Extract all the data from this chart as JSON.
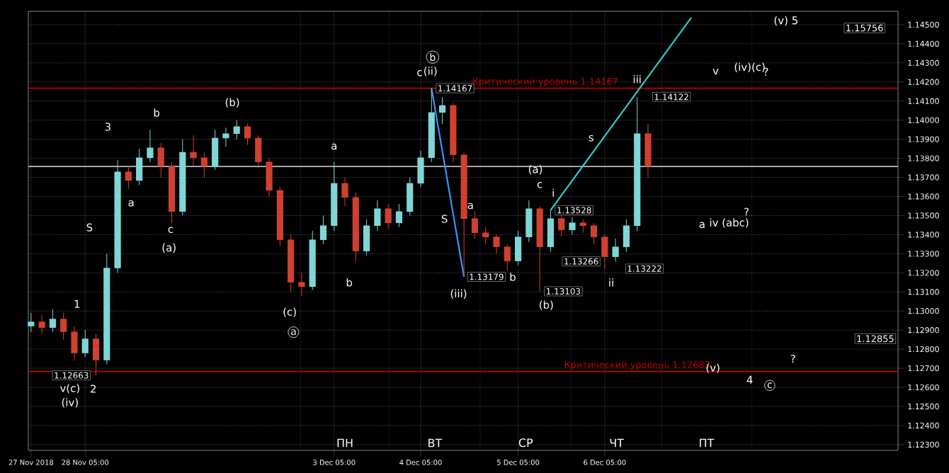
{
  "chart_data": {
    "type": "candlestick",
    "categories": [
      "27 Nov 2018",
      null,
      null,
      null,
      null,
      "28 Nov 05:00",
      null,
      null,
      null,
      null,
      null,
      null,
      null,
      null,
      null,
      null,
      null,
      null,
      null,
      null,
      null,
      null,
      null,
      null,
      null,
      null,
      null,
      null,
      "3 Dec 05:00",
      null,
      null,
      null,
      null,
      null,
      null,
      null,
      "4 Dec 05:00",
      null,
      null,
      null,
      null,
      null,
      null,
      null,
      null,
      "5 Dec 05:00",
      null,
      null,
      null,
      null,
      null,
      null,
      null,
      "6 Dec 05:00",
      null,
      null,
      null,
      null,
      null,
      null,
      null,
      null,
      null,
      null,
      null,
      null,
      null,
      null,
      null,
      null,
      null,
      null,
      null,
      null,
      null,
      null,
      null,
      null,
      null,
      null,
      null
    ],
    "ohlc": [
      [
        1.1292,
        1.1299,
        1.1289,
        1.12942
      ],
      [
        1.12942,
        1.1298,
        1.1288,
        1.12912
      ],
      [
        1.12912,
        1.1301,
        1.1289,
        1.12957
      ],
      [
        1.12957,
        1.1299,
        1.1285,
        1.1289
      ],
      [
        1.1289,
        1.1292,
        1.1274,
        1.12779
      ],
      [
        1.12779,
        1.129,
        1.1276,
        1.12853
      ],
      [
        1.12853,
        1.1288,
        1.12663,
        1.12742
      ],
      [
        1.12742,
        1.133,
        1.1272,
        1.13224
      ],
      [
        1.13224,
        1.1379,
        1.132,
        1.13728
      ],
      [
        1.13728,
        1.1376,
        1.1364,
        1.13683
      ],
      [
        1.13683,
        1.1385,
        1.1366,
        1.13802
      ],
      [
        1.13802,
        1.1395,
        1.1378,
        1.13854
      ],
      [
        1.13854,
        1.1388,
        1.137,
        1.13757
      ],
      [
        1.13757,
        1.1378,
        1.1346,
        1.1352
      ],
      [
        1.1352,
        1.139,
        1.135,
        1.13831
      ],
      [
        1.13831,
        1.1392,
        1.1376,
        1.13802
      ],
      [
        1.13802,
        1.1383,
        1.137,
        1.13757
      ],
      [
        1.13757,
        1.1395,
        1.1374,
        1.13905
      ],
      [
        1.13905,
        1.1396,
        1.1386,
        1.13928
      ],
      [
        1.13928,
        1.14,
        1.139,
        1.13965
      ],
      [
        1.13965,
        1.1398,
        1.1387,
        1.13905
      ],
      [
        1.13905,
        1.1392,
        1.1375,
        1.1378
      ],
      [
        1.1378,
        1.138,
        1.136,
        1.13631
      ],
      [
        1.13631,
        1.1365,
        1.1334,
        1.13372
      ],
      [
        1.13372,
        1.134,
        1.131,
        1.1315
      ],
      [
        1.1315,
        1.132,
        1.1308,
        1.13127
      ],
      [
        1.13127,
        1.1342,
        1.1311,
        1.13372
      ],
      [
        1.13372,
        1.135,
        1.1335,
        1.13446
      ],
      [
        1.13446,
        1.1378,
        1.1342,
        1.13668
      ],
      [
        1.13668,
        1.137,
        1.1355,
        1.13594
      ],
      [
        1.13594,
        1.1362,
        1.1326,
        1.13313
      ],
      [
        1.13313,
        1.1348,
        1.1329,
        1.13446
      ],
      [
        1.13446,
        1.1358,
        1.1342,
        1.13535
      ],
      [
        1.13535,
        1.1356,
        1.1343,
        1.13461
      ],
      [
        1.13461,
        1.1356,
        1.1344,
        1.1352
      ],
      [
        1.1352,
        1.137,
        1.135,
        1.13668
      ],
      [
        1.13668,
        1.1384,
        1.1365,
        1.13802
      ],
      [
        1.13802,
        1.14167,
        1.1378,
        1.14039
      ],
      [
        1.14039,
        1.1412,
        1.1398,
        1.14076
      ],
      [
        1.14076,
        1.1409,
        1.1378,
        1.13817
      ],
      [
        1.13817,
        1.1383,
        1.13179,
        1.13483
      ],
      [
        1.13483,
        1.1352,
        1.1338,
        1.13409
      ],
      [
        1.13409,
        1.1344,
        1.1335,
        1.13387
      ],
      [
        1.13387,
        1.134,
        1.133,
        1.13335
      ],
      [
        1.13335,
        1.1335,
        1.1321,
        1.13261
      ],
      [
        1.13261,
        1.1342,
        1.1324,
        1.13387
      ],
      [
        1.13387,
        1.1358,
        1.1336,
        1.13535
      ],
      [
        1.13535,
        1.1355,
        1.13103,
        1.13335
      ],
      [
        1.13335,
        1.13528,
        1.1331,
        1.13483
      ],
      [
        1.13483,
        1.135,
        1.1339,
        1.13424
      ],
      [
        1.13424,
        1.1349,
        1.134,
        1.13461
      ],
      [
        1.13461,
        1.1348,
        1.1341,
        1.13446
      ],
      [
        1.13446,
        1.1346,
        1.1335,
        1.13387
      ],
      [
        1.13387,
        1.134,
        1.13222,
        1.13283
      ],
      [
        1.13283,
        1.1338,
        1.1326,
        1.13335
      ],
      [
        1.13335,
        1.1348,
        1.1331,
        1.13446
      ],
      [
        1.13446,
        1.14122,
        1.1342,
        1.13928
      ],
      [
        1.13928,
        1.1398,
        1.137,
        1.13757
      ],
      null,
      null,
      null,
      null,
      null,
      null,
      null,
      null,
      null,
      null,
      null,
      null,
      null,
      null,
      null,
      null,
      null,
      null,
      null,
      null,
      null,
      null,
      null
    ],
    "series": [
      {
        "type": "line",
        "color": "#3399ff",
        "values": [
          null,
          null,
          null,
          null,
          null,
          null,
          null,
          null,
          null,
          null,
          null,
          null,
          null,
          null,
          null,
          null,
          null,
          null,
          null,
          null,
          null,
          null,
          null,
          null,
          null,
          null,
          null,
          null,
          null,
          null,
          null,
          null,
          null,
          null,
          null,
          null,
          null,
          1.14167,
          null,
          null,
          1.13179,
          null,
          null,
          null,
          null,
          null,
          null,
          null,
          null,
          null,
          null,
          null,
          null,
          null,
          null,
          null,
          null,
          null,
          null,
          null,
          null,
          null,
          null,
          null,
          null,
          null,
          null,
          null,
          null,
          null,
          null,
          null,
          null,
          null,
          null,
          null,
          null,
          null,
          null,
          null,
          null
        ]
      },
      {
        "type": "line",
        "color": "#33cccc",
        "values": [
          null,
          null,
          null,
          null,
          null,
          null,
          null,
          null,
          null,
          null,
          null,
          null,
          null,
          null,
          null,
          null,
          null,
          null,
          null,
          null,
          null,
          null,
          null,
          null,
          null,
          null,
          null,
          null,
          null,
          null,
          null,
          null,
          null,
          null,
          null,
          null,
          null,
          null,
          null,
          null,
          null,
          null,
          null,
          null,
          null,
          null,
          null,
          null,
          1.13528,
          null,
          null,
          null,
          null,
          null,
          null,
          null,
          null,
          null,
          null,
          null,
          null,
          1.14537,
          null,
          null,
          null,
          null,
          null,
          null,
          null,
          null,
          null,
          null,
          null,
          null,
          null,
          null,
          null,
          null,
          null,
          null,
          null
        ]
      }
    ],
    "ylim": [
      1.1227,
      1.1457
    ],
    "grid": true,
    "yticks": [
      {
        "value": 1.123,
        "label": "1.12300"
      },
      {
        "value": 1.124,
        "label": "1.12400"
      },
      {
        "value": 1.125,
        "label": "1.12500"
      },
      {
        "value": 1.126,
        "label": "1.12600"
      },
      {
        "value": 1.127,
        "label": "1.12700"
      },
      {
        "value": 1.128,
        "label": "1.12800"
      },
      {
        "value": 1.129,
        "label": "1.12900"
      },
      {
        "value": 1.13,
        "label": "1.13000"
      },
      {
        "value": 1.131,
        "label": "1.13100"
      },
      {
        "value": 1.132,
        "label": "1.13200"
      },
      {
        "value": 1.133,
        "label": "1.13300"
      },
      {
        "value": 1.134,
        "label": "1.13400"
      },
      {
        "value": 1.135,
        "label": "1.13500"
      },
      {
        "value": 1.136,
        "label": "1.13600"
      },
      {
        "value": 1.137,
        "label": "1.13700"
      },
      {
        "value": 1.138,
        "label": "1.13800"
      },
      {
        "value": 1.139,
        "label": "1.13900"
      },
      {
        "value": 1.14,
        "label": "1.14000"
      },
      {
        "value": 1.141,
        "label": "1.14100"
      },
      {
        "value": 1.142,
        "label": "1.14200"
      },
      {
        "value": 1.143,
        "label": "1.14300"
      },
      {
        "value": 1.144,
        "label": "1.14400"
      },
      {
        "value": 1.145,
        "label": "1.14500"
      }
    ],
    "ref_lines": [
      {
        "axis": "y",
        "value": 1.14167,
        "label": "Критический уровень 1.14167",
        "color": "#c00000"
      },
      {
        "axis": "y",
        "value": 1.12683,
        "label": "Критический уровень 1.12683",
        "color": "#c00000"
      },
      {
        "axis": "y",
        "value": 1.13757,
        "color": "#bbbbbb"
      }
    ],
    "annotations": [
      "1.12663",
      "1.13179",
      "1.14167",
      "1.13528",
      "1.13103",
      "1.13266",
      "1.13222",
      "1.14122",
      "1.12855",
      "1.15756",
      "1",
      "2",
      "v(c)",
      "(iv)",
      "3",
      "S",
      "a",
      "b",
      "c",
      "(a)",
      "(b)",
      "(c)",
      "a",
      "a",
      "b",
      "c",
      "b",
      "(ii)",
      "S",
      "(iii)",
      "a",
      "b",
      "(a)",
      "c",
      "i",
      "(b)",
      "ii",
      "s",
      "iii",
      "a",
      "iv (abc)",
      "?",
      "v",
      "(iv)(c)",
      "?",
      "(v) 5",
      "(v)",
      "4",
      "c",
      "?",
      "ПН",
      "ВТ",
      "СР",
      "ЧТ",
      "ПТ"
    ]
  }
}
